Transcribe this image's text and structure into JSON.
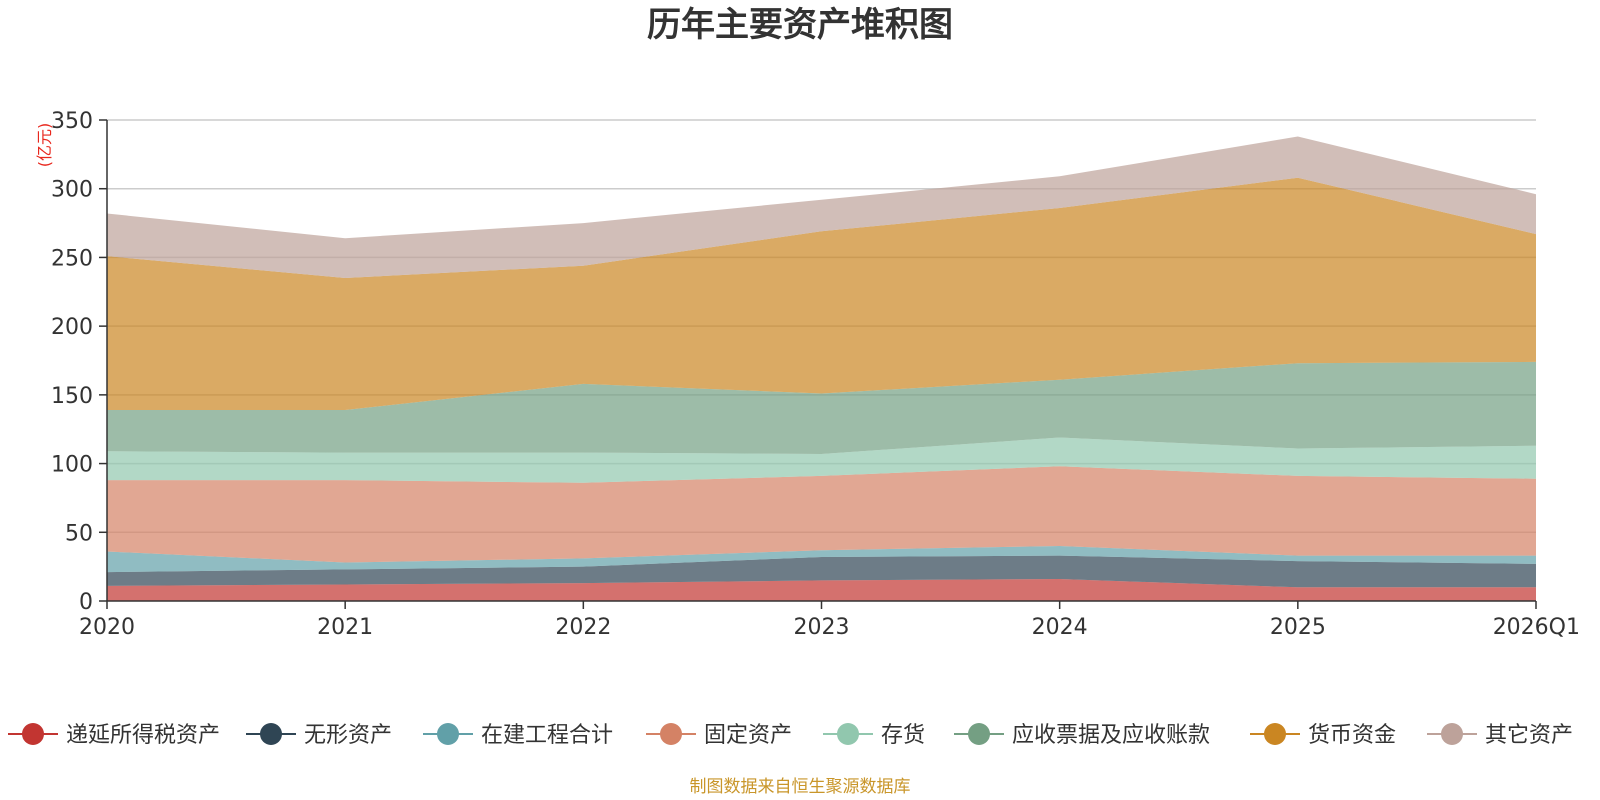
{
  "chart_data": {
    "type": "area",
    "stacked": true,
    "title": "历年主要资产堆积图",
    "unit": "(亿元)",
    "source": "制图数据来自恒生聚源数据库",
    "categories": [
      "2020",
      "2021",
      "2022",
      "2023",
      "2024",
      "2025",
      "2026Q1"
    ],
    "ylim": [
      0,
      350
    ],
    "yticks": [
      0,
      50,
      100,
      150,
      200,
      250,
      300,
      350
    ],
    "grid": true,
    "legend_position": "bottom",
    "series": [
      {
        "name": "递延所得税资产",
        "color": "#c23531",
        "values": [
          11,
          12,
          13,
          15,
          16,
          10,
          10
        ]
      },
      {
        "name": "无形资产",
        "color": "#2f4554",
        "values": [
          10,
          11,
          12,
          17,
          17,
          19,
          17
        ]
      },
      {
        "name": "在建工程合计",
        "color": "#61a0a8",
        "values": [
          15,
          5,
          6,
          5,
          7,
          4,
          6
        ]
      },
      {
        "name": "固定资产",
        "color": "#d48265",
        "values": [
          52,
          60,
          55,
          54,
          58,
          58,
          56
        ]
      },
      {
        "name": "存货",
        "color": "#91c7ae",
        "values": [
          21,
          20,
          22,
          16,
          21,
          20,
          24
        ]
      },
      {
        "name": "应收票据及应收账款",
        "color": "#749f83",
        "values": [
          30,
          31,
          50,
          44,
          42,
          62,
          61
        ]
      },
      {
        "name": "货币资金",
        "color": "#ca8622",
        "values": [
          112,
          96,
          86,
          118,
          125,
          135,
          93
        ]
      },
      {
        "name": "其它资产",
        "color": "#bda29a",
        "values": [
          31,
          29,
          31,
          23,
          23,
          30,
          29
        ]
      }
    ]
  }
}
